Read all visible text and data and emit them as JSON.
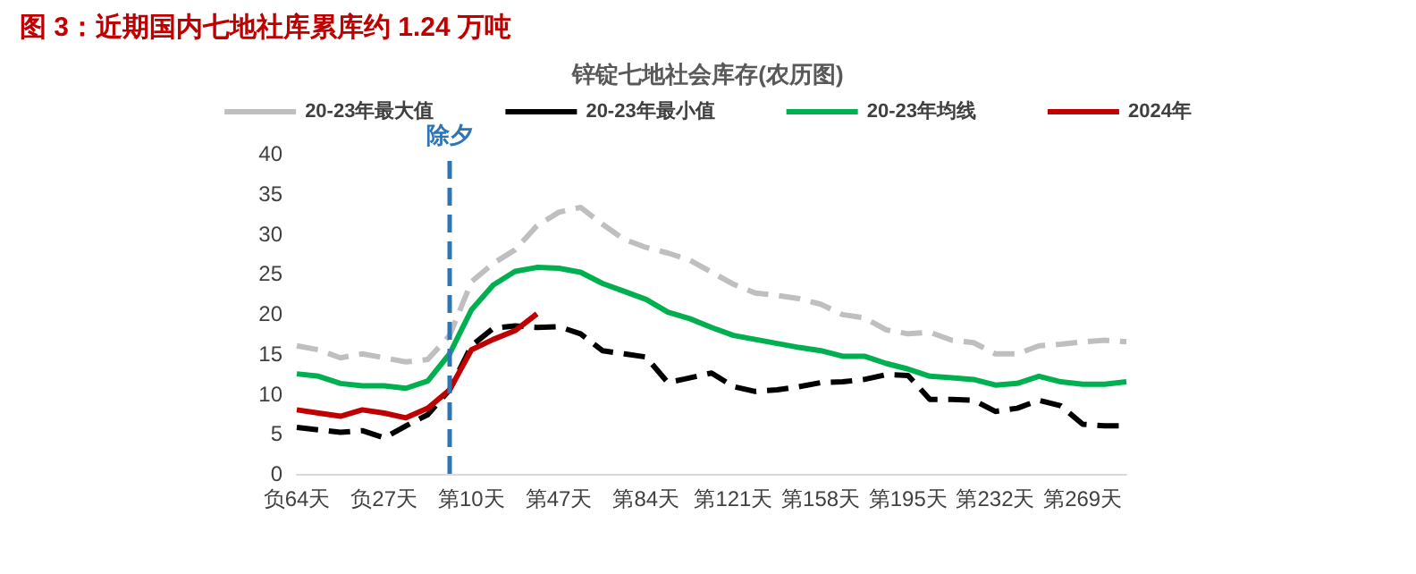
{
  "chart_data": {
    "type": "line",
    "title": "图 3：近期国内七地社库累库约 1.24 万吨",
    "subtitle": "锌锭七地社会库存(农历图)",
    "categories": [
      "负64天",
      null,
      null,
      null,
      "负27天",
      null,
      null,
      null,
      "第10天",
      null,
      null,
      null,
      "第47天",
      null,
      null,
      null,
      "第84天",
      null,
      null,
      null,
      "第121天",
      null,
      null,
      null,
      "第158天",
      null,
      null,
      null,
      "第195天",
      null,
      null,
      null,
      "第232天",
      null,
      null,
      null,
      "第269天",
      null,
      null
    ],
    "ylim": [
      0,
      40
    ],
    "yticks": [
      0,
      5,
      10,
      15,
      20,
      25,
      30,
      35,
      40
    ],
    "series": [
      {
        "name": "20-23年最大值",
        "color": "#bfbfbf",
        "line_style": "dashed",
        "values": [
          16,
          15.5,
          14.5,
          15,
          14.5,
          14,
          14.3,
          17.3,
          24,
          26.3,
          28,
          31,
          32.7,
          33.3,
          31.2,
          29.3,
          28.3,
          27.6,
          26.7,
          25.2,
          23.7,
          22.6,
          22.3,
          21.9,
          21.2,
          19.9,
          19.5,
          18,
          17.5,
          17.7,
          16.7,
          16.4,
          15,
          15,
          16,
          16.2,
          16.5,
          16.7,
          16.5
        ]
      },
      {
        "name": "20-23年最小值",
        "color": "#000000",
        "line_style": "dashed",
        "values": [
          5.8,
          5.5,
          5.2,
          5.4,
          4.5,
          6,
          7.4,
          10.5,
          16,
          18.2,
          18.5,
          18.3,
          18.4,
          17.5,
          15.4,
          15,
          14.6,
          11.4,
          12,
          12.6,
          10.9,
          10.3,
          10.5,
          10.9,
          11.4,
          11.5,
          11.8,
          12.4,
          12.3,
          9.3,
          9.3,
          9.2,
          7.8,
          8.2,
          9.2,
          8.5,
          6.2,
          6,
          6
        ]
      },
      {
        "name": "20-23年均线",
        "color": "#00b050",
        "line_style": "solid",
        "values": [
          12.5,
          12.2,
          11.3,
          11,
          11,
          10.7,
          11.6,
          15,
          20.5,
          23.6,
          25.3,
          25.8,
          25.7,
          25.2,
          23.8,
          22.8,
          21.8,
          20.2,
          19.4,
          18.3,
          17.3,
          16.8,
          16.3,
          15.8,
          15.4,
          14.7,
          14.7,
          13.8,
          13.1,
          12.2,
          12,
          11.8,
          11.1,
          11.3,
          12.2,
          11.5,
          11.2,
          11.2,
          11.5
        ]
      },
      {
        "name": "2024年",
        "color": "#c00000",
        "line_style": "solid",
        "values": [
          8,
          7.6,
          7.2,
          8,
          7.6,
          7,
          8.2,
          10.5,
          15.5,
          16.8,
          17.9,
          20,
          null,
          null,
          null,
          null,
          null,
          null,
          null,
          null,
          null,
          null,
          null,
          null,
          null,
          null,
          null,
          null,
          null,
          null,
          null,
          null,
          null,
          null,
          null,
          null,
          null,
          null,
          null
        ]
      }
    ],
    "annotations": [
      "除夕"
    ],
    "legend": "top",
    "grid": false,
    "marker": "none"
  }
}
